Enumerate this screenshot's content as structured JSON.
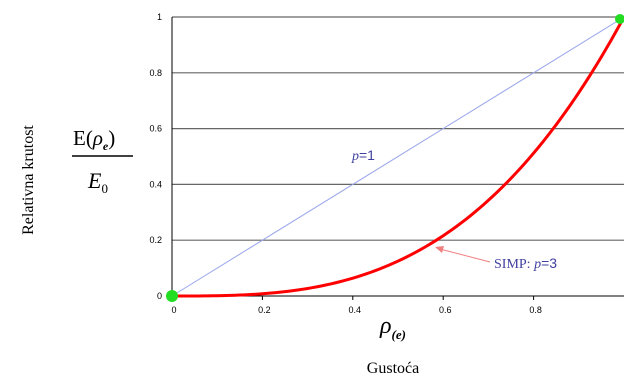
{
  "chart_data": {
    "type": "line",
    "xlabel_symbol": "ρ",
    "xlabel_subscript": "(e)",
    "xlabel": "Gustoća",
    "ylabel": "Relativna krutost",
    "ylabel_formula_num_main": "E(",
    "ylabel_formula_num_sym": "ρ",
    "ylabel_formula_num_sub": "e",
    "ylabel_formula_num_end": ")",
    "ylabel_formula_den_main": "E",
    "ylabel_formula_den_sub": "0",
    "xlim": [
      0,
      1
    ],
    "ylim": [
      0,
      1
    ],
    "xticks": [
      "0",
      "0.2",
      "0.4",
      "0.6",
      "0.8"
    ],
    "yticks": [
      "0",
      "0.2",
      "0.4",
      "0.6",
      "0.8",
      "1"
    ],
    "grid": "horizontal",
    "series": [
      {
        "id": "p1",
        "color": "#9aa6ec",
        "exponent": 1,
        "label_prefix": "p",
        "label_suffix": "=1"
      },
      {
        "id": "simp",
        "color": "#ff0000",
        "exponent": 3,
        "label_prefix": "SIMP: ",
        "label_italic": "p",
        "label_suffix": "=3"
      }
    ],
    "endpoints": [
      {
        "x": 0,
        "y": 0,
        "color": "#22dd22"
      },
      {
        "x": 1,
        "y": 1,
        "color": "#22dd22"
      }
    ],
    "annotation_arrow_color": "#f08080"
  }
}
